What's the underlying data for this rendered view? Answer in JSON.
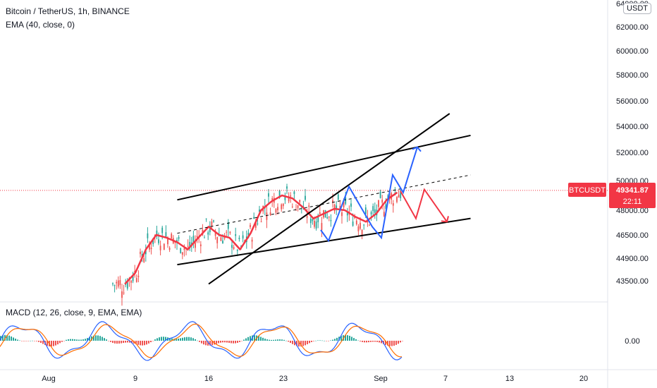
{
  "header": {
    "symbol_line": "Bitcoin / TetherUS, 1h, BINANCE",
    "indicator_line": "EMA (40, close, 0)",
    "macd_line": "MACD (12, 26, close, 9, EMA, EMA)"
  },
  "currency_badge": "USDT",
  "price_tag": {
    "ticker": "BTCUSDT",
    "price": "49341.87",
    "countdown": "22:11",
    "color": "#f23645"
  },
  "colors": {
    "ema": "#f23645",
    "blue_path": "#2962ff",
    "red_path": "#f23645",
    "candle_up": "#26a69a",
    "candle_down": "#ef5350",
    "trendline": "#000000",
    "macd_line": "#2962ff",
    "signal_line": "#ff6d00"
  },
  "chart_data": {
    "type": "candlestick",
    "title": "Bitcoin / TetherUS, 1h, BINANCE",
    "y_ticks": [
      "43500.00",
      "44900.00",
      "46500.00",
      "48000.00",
      "50000.00",
      "52000.00",
      "54000.00",
      "56000.00",
      "58000.00",
      "60000.00",
      "62000.00",
      "64000.00"
    ],
    "x_ticks": [
      "Aug",
      "9",
      "16",
      "23",
      "Sep",
      "7",
      "13",
      "20"
    ],
    "ylim": [
      42000,
      64500
    ],
    "macd_ticks": [
      "0.00"
    ],
    "series": [
      {
        "name": "EMA (40, close, 0)",
        "type": "line",
        "x": [
          "Aug 8",
          "Aug 9",
          "Aug 10",
          "Aug 11",
          "Aug 12",
          "Aug 13",
          "Aug 14",
          "Aug 15",
          "Aug 16",
          "Aug 17",
          "Aug 18",
          "Aug 19",
          "Aug 20",
          "Aug 21",
          "Aug 22",
          "Aug 23",
          "Aug 24",
          "Aug 25",
          "Aug 26",
          "Aug 27",
          "Aug 28",
          "Aug 29",
          "Aug 30",
          "Aug 31",
          "Sep 1",
          "Sep 2",
          "Sep 3"
        ],
        "values": [
          43300,
          44000,
          45500,
          46500,
          46300,
          46000,
          45500,
          46300,
          47000,
          46500,
          46300,
          45500,
          46600,
          48000,
          48600,
          49000,
          48800,
          48200,
          47500,
          47800,
          48100,
          48000,
          47600,
          47300,
          47800,
          48700,
          49200
        ]
      }
    ],
    "annotations": {
      "channel_upper": {
        "from": [
          "Aug 13",
          48700
        ],
        "to": [
          "Sep 10",
          53300
        ]
      },
      "channel_lower": {
        "from": [
          "Aug 13",
          44500
        ],
        "to": [
          "Sep 10",
          47500
        ]
      },
      "channel_mid": {
        "from": [
          "Aug 13",
          46600
        ],
        "to": [
          "Sep 10",
          50400
        ]
      },
      "steep_trendline": {
        "from": [
          "Aug 16",
          43300
        ],
        "to": [
          "Sep 8",
          55000
        ]
      },
      "horizontal_price_line": 49341.87
    }
  }
}
